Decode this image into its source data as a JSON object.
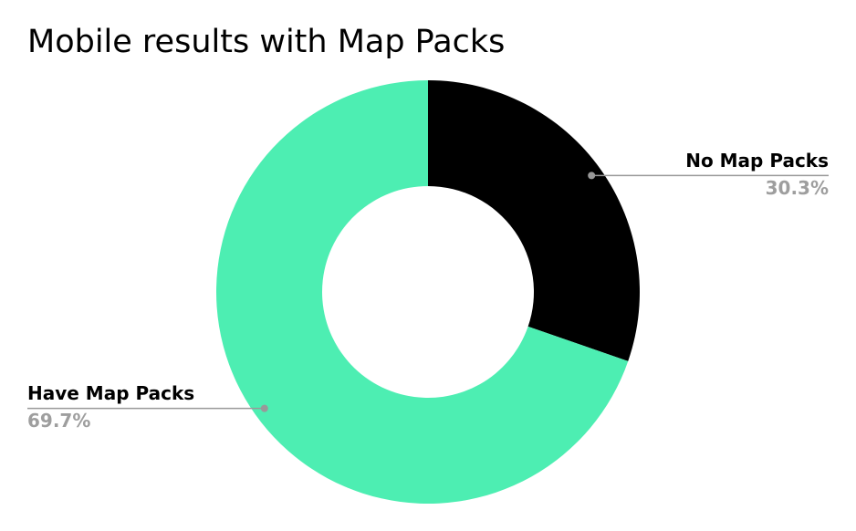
{
  "chart_data": {
    "type": "donut",
    "title": "Mobile results with Map Packs",
    "categories": [
      "No Map Packs",
      "Have Map Packs"
    ],
    "values": [
      30.3,
      69.7
    ],
    "value_labels": [
      "30.3%",
      "69.7%"
    ],
    "colors": [
      "#000000",
      "#4deeb2"
    ]
  }
}
